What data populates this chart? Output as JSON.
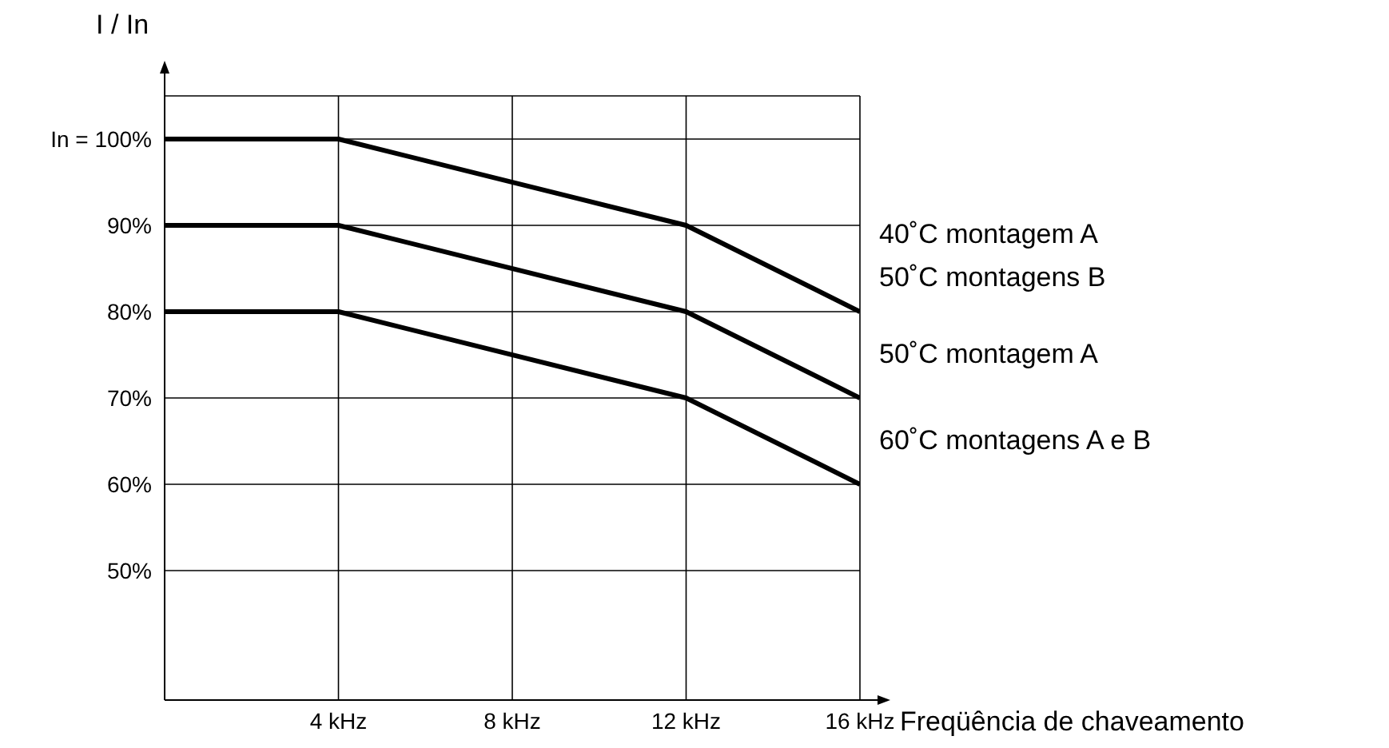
{
  "chart_data": {
    "type": "line",
    "ylabel": "I / In",
    "xlabel": "Freqüência de chaveamento",
    "x": [
      0,
      4,
      12,
      16
    ],
    "series": [
      {
        "name": "40˚C montagem A\n50˚C montagens B",
        "color": "#000000",
        "values": [
          100,
          100,
          90,
          80
        ]
      },
      {
        "name": "50˚C montagem A",
        "color": "#000000",
        "values": [
          90,
          90,
          80,
          70
        ]
      },
      {
        "name": "60˚C montagens A e B",
        "color": "#000000",
        "values": [
          80,
          80,
          70,
          60
        ]
      }
    ],
    "xlim": [
      0,
      16
    ],
    "xticks": [
      {
        "value": 4,
        "label": "4 kHz"
      },
      {
        "value": 8,
        "label": "8 kHz"
      },
      {
        "value": 12,
        "label": "12 kHz"
      },
      {
        "value": 16,
        "label": "16 kHz"
      }
    ],
    "ylim": [
      35,
      105
    ],
    "yticks": [
      {
        "value": 50,
        "label": "50%"
      },
      {
        "value": 60,
        "label": "60%"
      },
      {
        "value": 70,
        "label": "70%"
      },
      {
        "value": 80,
        "label": "80%"
      },
      {
        "value": 90,
        "label": "90%"
      },
      {
        "value": 100,
        "label": "In = 100%"
      }
    ],
    "grid": true,
    "marker": "none",
    "line_style": "solid"
  }
}
